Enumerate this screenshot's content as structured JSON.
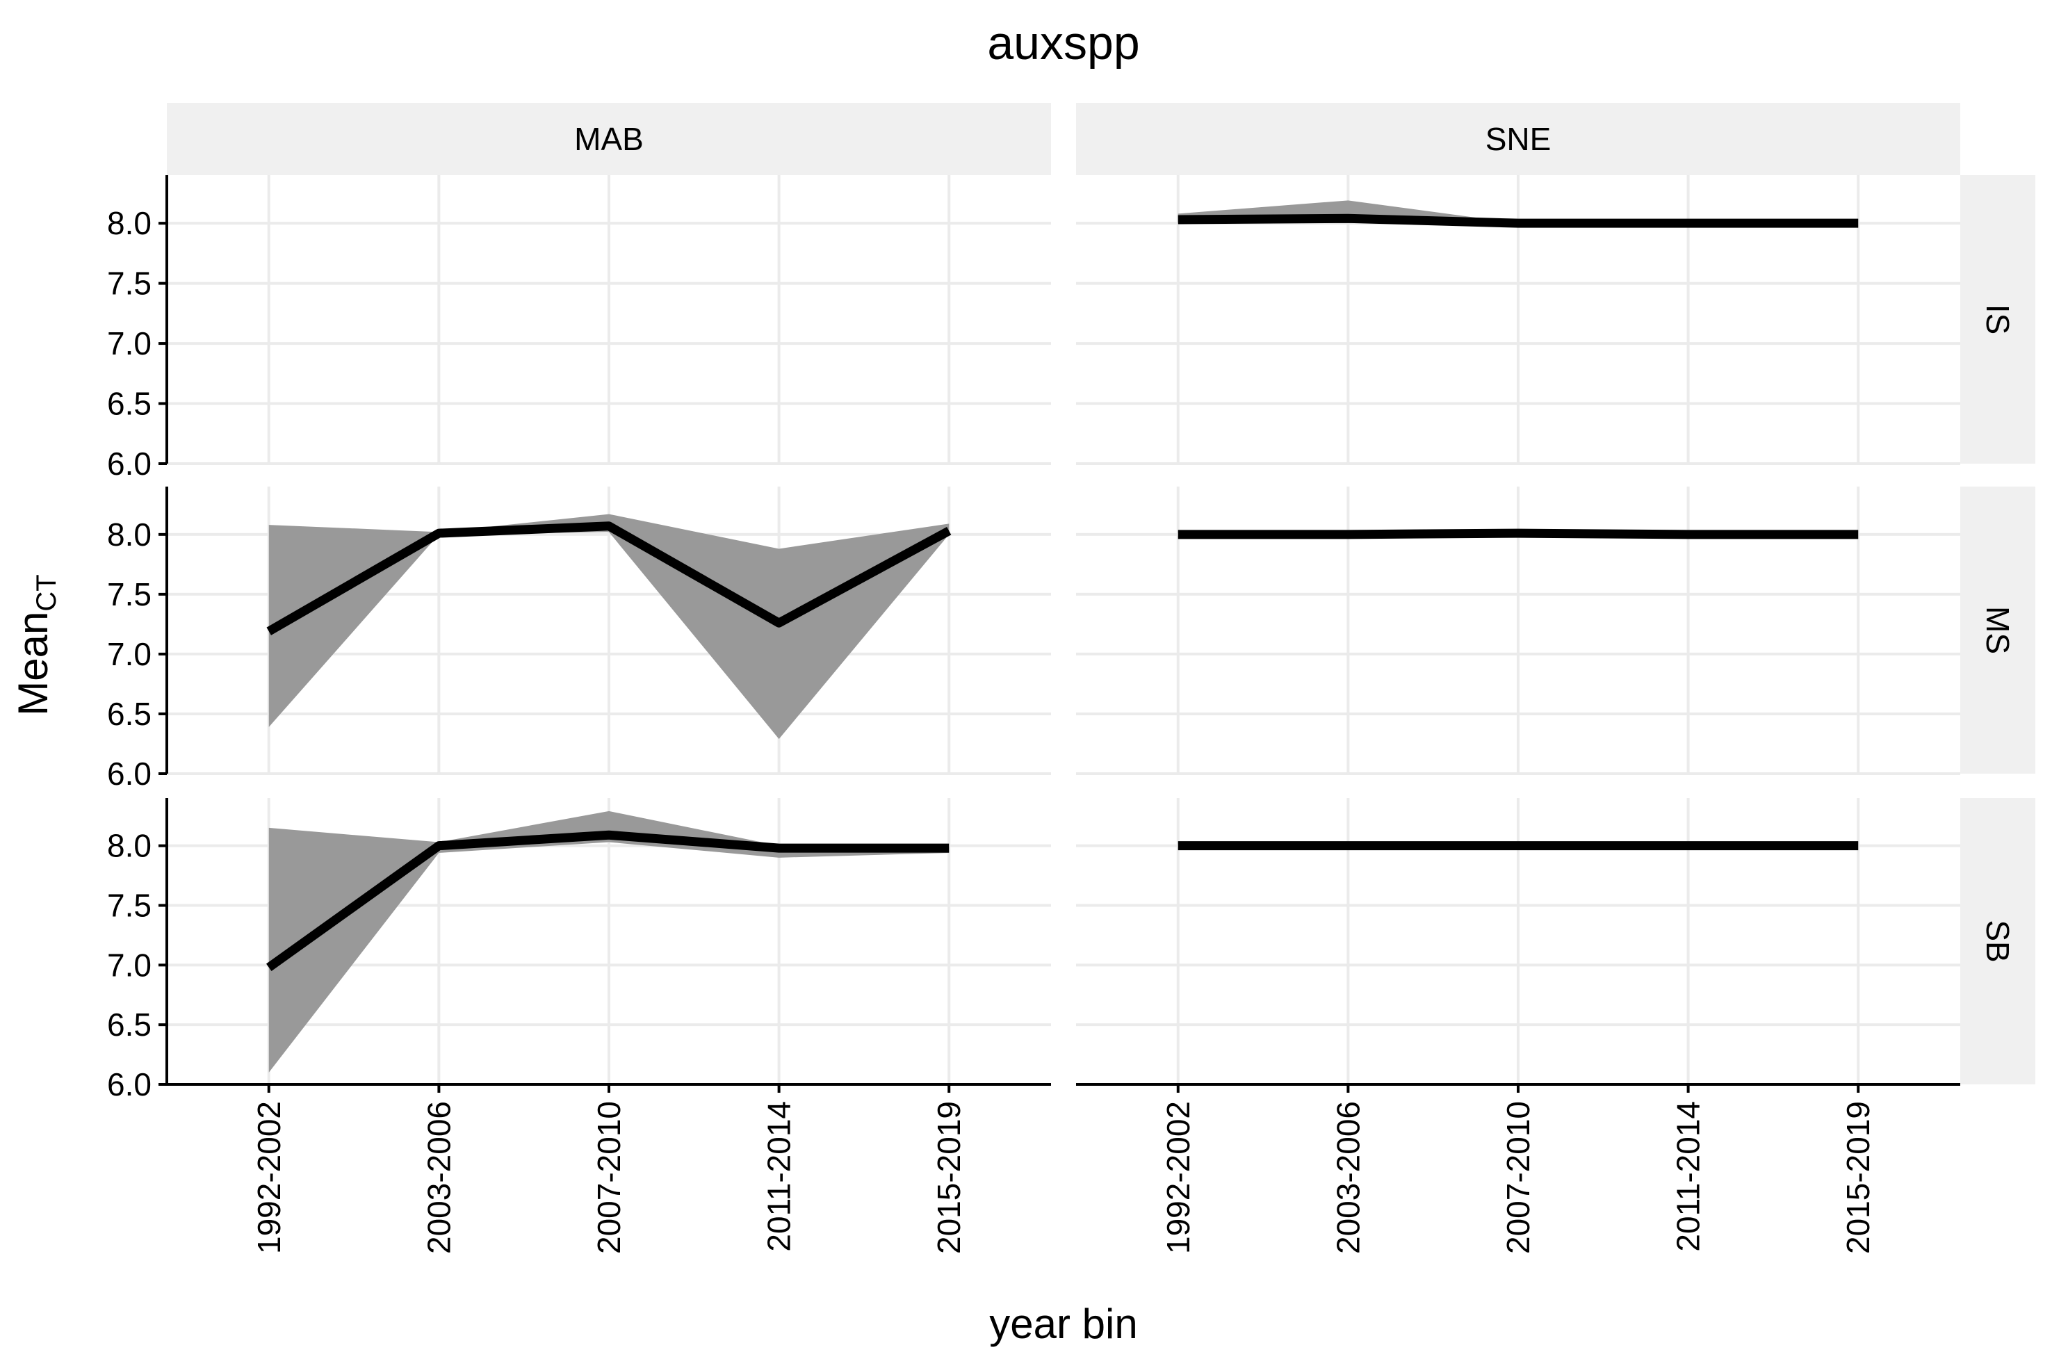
{
  "title": "auxspp",
  "xlabel": "year bin",
  "ylabel": {
    "main": "Mean",
    "sub": "CT"
  },
  "chart_data": {
    "type": "line",
    "title": "auxspp",
    "xlabel": "year bin",
    "ylabel": "MeanCT",
    "categories": [
      "1992-2002",
      "2003-2006",
      "2007-2010",
      "2011-2014",
      "2015-2019"
    ],
    "ylim": [
      6.0,
      8.4
    ],
    "yticks": [
      "6.0",
      "6.5",
      "7.0",
      "7.5",
      "8.0"
    ],
    "grid": true,
    "columns": [
      "MAB",
      "SNE"
    ],
    "rows": [
      "IS",
      "MS",
      "SB"
    ],
    "panels": [
      {
        "column": "MAB",
        "row": "IS",
        "mean": [],
        "lower": [],
        "upper": []
      },
      {
        "column": "SNE",
        "row": "IS",
        "mean": [
          8.03,
          8.04,
          8.0,
          8.0,
          8.0
        ],
        "lower": [
          8.0,
          8.0,
          8.0,
          8.0,
          8.0
        ],
        "upper": [
          8.08,
          8.19,
          8.0,
          8.0,
          8.0
        ]
      },
      {
        "column": "MAB",
        "row": "MS",
        "mean": [
          7.19,
          8.01,
          8.07,
          7.26,
          8.03
        ],
        "lower": [
          6.39,
          8.0,
          8.02,
          6.29,
          8.0
        ],
        "upper": [
          8.08,
          8.02,
          8.17,
          7.88,
          8.09
        ]
      },
      {
        "column": "SNE",
        "row": "MS",
        "mean": [
          8.0,
          8.0,
          8.01,
          8.0,
          8.0
        ],
        "lower": [
          8.0,
          8.0,
          8.0,
          8.0,
          8.0
        ],
        "upper": [
          8.0,
          8.0,
          8.02,
          8.0,
          8.0
        ]
      },
      {
        "column": "MAB",
        "row": "SB",
        "mean": [
          6.98,
          8.0,
          8.09,
          7.98,
          7.98
        ],
        "lower": [
          6.1,
          7.94,
          8.03,
          7.9,
          7.94
        ],
        "upper": [
          8.15,
          8.03,
          8.29,
          8.0,
          7.99
        ]
      },
      {
        "column": "SNE",
        "row": "SB",
        "mean": [
          8.0,
          8.0,
          8.0,
          8.0,
          8.0
        ],
        "lower": [
          8.0,
          8.0,
          8.0,
          8.0,
          8.0
        ],
        "upper": [
          8.0,
          8.0,
          8.0,
          8.0,
          8.0
        ]
      }
    ],
    "colors": {
      "line": "#000000",
      "ribbon": "#999999",
      "strip": "#f0f0f0",
      "grid": "#ebebeb"
    }
  }
}
